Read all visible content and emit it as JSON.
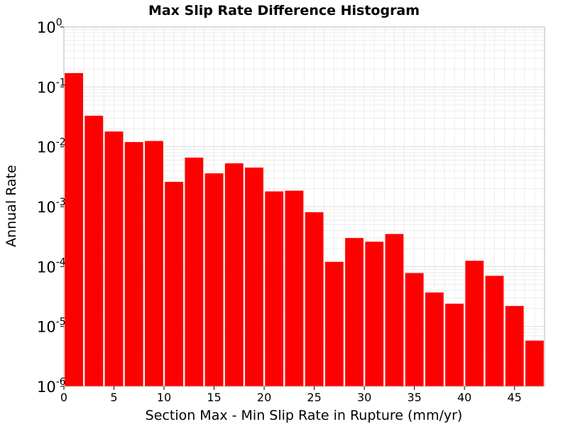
{
  "chart_data": {
    "type": "bar",
    "title": "Max Slip Rate Difference Histogram",
    "xlabel": "Section Max - Min Slip Rate in Rupture (mm/yr)",
    "ylabel": "Annual Rate",
    "xlim": [
      0,
      48
    ],
    "ylim": [
      1e-06,
      1
    ],
    "yscale": "log",
    "bin_width": 2,
    "x_ticks": [
      "0",
      "5",
      "10",
      "15",
      "20",
      "25",
      "30",
      "35",
      "40",
      "45"
    ],
    "y_ticks": [
      {
        "base": "10",
        "exp": "0"
      },
      {
        "base": "10",
        "exp": "-1"
      },
      {
        "base": "10",
        "exp": "-2"
      },
      {
        "base": "10",
        "exp": "-3"
      },
      {
        "base": "10",
        "exp": "-4"
      },
      {
        "base": "10",
        "exp": "-5"
      },
      {
        "base": "10",
        "exp": "-6"
      }
    ],
    "grid": true,
    "bar_color": "#ff0000",
    "categories": [
      1,
      3,
      5,
      7,
      9,
      11,
      13,
      15,
      17,
      19,
      21,
      23,
      25,
      27,
      29,
      31,
      33,
      35,
      37,
      39,
      41,
      43,
      45,
      47
    ],
    "values": [
      0.17,
      0.033,
      0.018,
      0.012,
      0.0125,
      0.0026,
      0.0066,
      0.0036,
      0.0053,
      0.0045,
      0.0018,
      0.00185,
      0.00081,
      0.00012,
      0.0003,
      0.00026,
      0.00035,
      7.8e-05,
      3.7e-05,
      2.4e-05,
      0.000125,
      7e-05,
      2.2e-05,
      5.8e-06
    ]
  }
}
